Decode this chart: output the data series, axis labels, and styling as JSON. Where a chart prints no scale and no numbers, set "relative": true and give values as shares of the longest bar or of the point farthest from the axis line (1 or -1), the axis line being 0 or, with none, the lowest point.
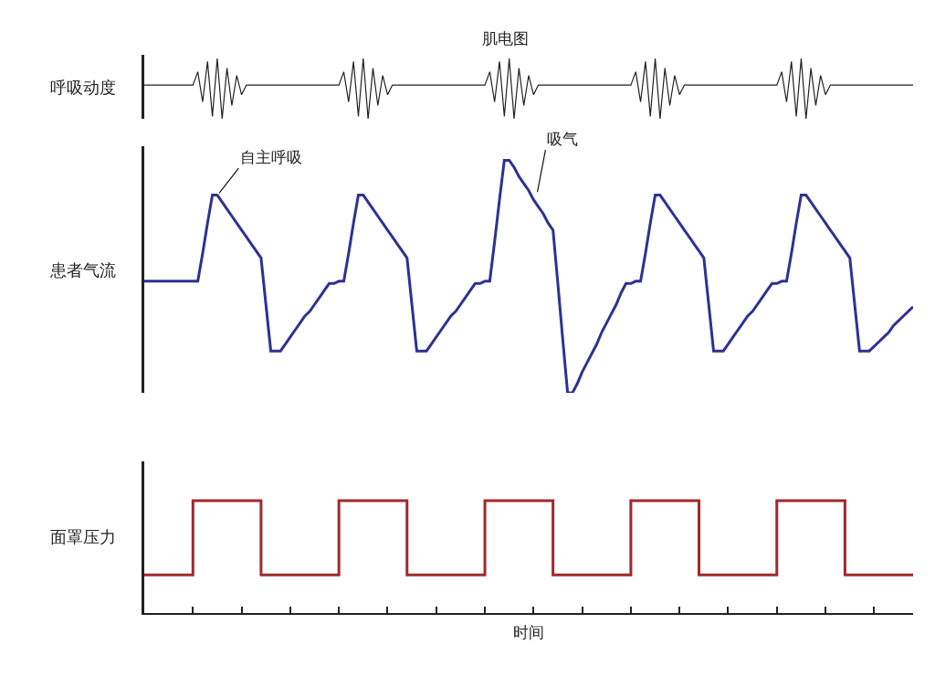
{
  "chart_data": [
    {
      "type": "line",
      "title": "肌电图",
      "ylabel": "呼吸动度",
      "relative": true,
      "tick_labels": false,
      "marker": "none",
      "line_style": "solid",
      "categories": [
        null,
        null,
        null,
        null,
        null,
        null,
        null,
        null,
        null,
        null,
        null,
        null,
        null,
        null,
        null,
        null,
        null,
        null,
        null,
        null,
        null,
        null,
        null,
        null,
        null,
        null,
        null,
        null,
        null,
        null,
        null,
        null,
        null,
        null,
        null,
        null,
        null,
        null,
        null,
        null,
        null,
        null,
        null,
        null,
        null,
        null,
        null,
        null,
        null,
        null,
        null,
        null,
        null,
        null,
        null,
        null,
        null,
        null,
        null,
        null,
        null,
        null,
        null,
        null,
        null,
        null,
        null,
        null,
        null,
        null,
        null,
        null,
        null,
        null,
        null,
        null,
        null,
        null,
        null,
        null,
        null,
        null,
        null,
        null,
        null,
        null,
        null,
        null,
        null,
        null,
        null,
        null,
        null,
        null,
        null,
        null,
        null,
        null,
        null,
        null,
        null,
        null,
        null,
        null,
        null,
        null,
        null,
        null,
        null,
        null,
        null,
        null,
        null,
        null,
        null,
        null,
        null,
        null,
        null,
        null,
        null,
        null,
        null,
        null,
        null,
        null,
        null,
        null,
        null,
        null,
        null,
        null,
        null,
        null,
        null,
        null,
        null,
        null,
        null,
        null,
        null,
        null,
        null,
        null,
        null,
        null,
        null,
        null,
        null,
        null,
        null,
        null,
        null,
        null,
        null,
        null,
        null,
        null,
        null
      ],
      "series": [
        {
          "color": "#222222",
          "values": [
            0.56,
            0.56,
            0.56,
            0.56,
            0.56,
            0.56,
            0.56,
            0.56,
            0.56,
            0.56,
            0.56,
            0.78,
            0.28,
            0.95,
            0.04,
            1.0,
            0,
            0.84,
            0.22,
            0.72,
            0.4,
            0.56,
            0.56,
            0.56,
            0.56,
            0.56,
            0.56,
            0.56,
            0.56,
            0.56,
            0.56,
            0.56,
            0.56,
            0.56,
            0.56,
            0.56,
            0.56,
            0.56,
            0.56,
            0.56,
            0.56,
            0.78,
            0.28,
            0.95,
            0.04,
            1.0,
            0,
            0.84,
            0.22,
            0.72,
            0.4,
            0.56,
            0.56,
            0.56,
            0.56,
            0.56,
            0.56,
            0.56,
            0.56,
            0.56,
            0.56,
            0.56,
            0.56,
            0.56,
            0.56,
            0.56,
            0.56,
            0.56,
            0.56,
            0.56,
            0.56,
            0.78,
            0.28,
            0.95,
            0.04,
            1.0,
            0,
            0.84,
            0.22,
            0.72,
            0.4,
            0.56,
            0.56,
            0.56,
            0.56,
            0.56,
            0.56,
            0.56,
            0.56,
            0.56,
            0.56,
            0.56,
            0.56,
            0.56,
            0.56,
            0.56,
            0.56,
            0.56,
            0.56,
            0.56,
            0.56,
            0.78,
            0.28,
            0.95,
            0.04,
            1.0,
            0,
            0.84,
            0.22,
            0.72,
            0.4,
            0.56,
            0.56,
            0.56,
            0.56,
            0.56,
            0.56,
            0.56,
            0.56,
            0.56,
            0.56,
            0.56,
            0.56,
            0.56,
            0.56,
            0.56,
            0.56,
            0.56,
            0.56,
            0.56,
            0.56,
            0.78,
            0.28,
            0.95,
            0.04,
            1.0,
            0,
            0.84,
            0.22,
            0.72,
            0.4,
            0.56,
            0.56,
            0.56,
            0.56,
            0.56,
            0.56,
            0.56,
            0.56,
            0.56,
            0.56,
            0.56,
            0.56,
            0.56,
            0.56,
            0.56,
            0.56,
            0.56,
            0.56
          ]
        }
      ]
    },
    {
      "type": "line",
      "ylabel": "患者气流",
      "relative": true,
      "tick_labels": false,
      "marker": "none",
      "line_style": "solid",
      "annotations": [
        "自主呼吸",
        "吸气"
      ],
      "categories": [
        null,
        null,
        null,
        null,
        null,
        null,
        null,
        null,
        null,
        null,
        null,
        null,
        null,
        null,
        null,
        null,
        null,
        null,
        null,
        null,
        null,
        null,
        null,
        null,
        null,
        null,
        null,
        null,
        null,
        null,
        null,
        null,
        null,
        null,
        null,
        null,
        null,
        null,
        null,
        null,
        null,
        null,
        null,
        null,
        null,
        null,
        null,
        null,
        null,
        null,
        null,
        null,
        null,
        null,
        null,
        null,
        null,
        null,
        null,
        null,
        null,
        null,
        null,
        null,
        null,
        null,
        null,
        null,
        null,
        null,
        null,
        null,
        null,
        null,
        null,
        null,
        null,
        null,
        null,
        null,
        null,
        null,
        null,
        null,
        null,
        null,
        null,
        null,
        null,
        null,
        null,
        null,
        null,
        null,
        null,
        null,
        null,
        null,
        null,
        null,
        null,
        null,
        null,
        null,
        null,
        null,
        null,
        null,
        null,
        null,
        null,
        null,
        null,
        null,
        null,
        null,
        null,
        null,
        null,
        null,
        null,
        null,
        null,
        null,
        null,
        null,
        null,
        null,
        null,
        null,
        null,
        null,
        null,
        null,
        null,
        null,
        null,
        null,
        null,
        null,
        null,
        null,
        null,
        null,
        null,
        null,
        null,
        null,
        null,
        null,
        null,
        null,
        null,
        null,
        null,
        null,
        null,
        null,
        null
      ],
      "series": [
        {
          "color": "#2e3192",
          "values": [
            0.48,
            0.48,
            0.48,
            0.48,
            0.48,
            0.48,
            0.48,
            0.48,
            0.48,
            0.48,
            0.48,
            0.48,
            0.6,
            0.73,
            0.85,
            0.85,
            0.82,
            0.79,
            0.76,
            0.73,
            0.7,
            0.67,
            0.64,
            0.61,
            0.58,
            0.38,
            0.18,
            0.18,
            0.18,
            0.21,
            0.24,
            0.27,
            0.3,
            0.33,
            0.35,
            0.38,
            0.41,
            0.44,
            0.47,
            0.47,
            0.48,
            0.48,
            0.6,
            0.73,
            0.85,
            0.85,
            0.82,
            0.79,
            0.76,
            0.73,
            0.7,
            0.67,
            0.64,
            0.61,
            0.58,
            0.38,
            0.18,
            0.18,
            0.18,
            0.21,
            0.24,
            0.27,
            0.3,
            0.33,
            0.35,
            0.38,
            0.41,
            0.44,
            0.47,
            0.47,
            0.48,
            0.48,
            0.65,
            0.83,
            1.0,
            1.0,
            0.97,
            0.93,
            0.9,
            0.87,
            0.83,
            0.8,
            0.77,
            0.73,
            0.7,
            0.47,
            0.23,
            0,
            0,
            0.04,
            0.09,
            0.13,
            0.17,
            0.21,
            0.26,
            0.3,
            0.34,
            0.38,
            0.43,
            0.47,
            0.47,
            0.48,
            0.48,
            0.6,
            0.73,
            0.85,
            0.85,
            0.82,
            0.79,
            0.76,
            0.73,
            0.7,
            0.67,
            0.64,
            0.61,
            0.58,
            0.38,
            0.18,
            0.18,
            0.18,
            0.21,
            0.24,
            0.27,
            0.3,
            0.33,
            0.35,
            0.38,
            0.41,
            0.44,
            0.47,
            0.47,
            0.48,
            0.48,
            0.6,
            0.73,
            0.85,
            0.85,
            0.82,
            0.79,
            0.76,
            0.73,
            0.7,
            0.67,
            0.64,
            0.61,
            0.58,
            0.38,
            0.18,
            0.18,
            0.18,
            0.2,
            0.22,
            0.24,
            0.26,
            0.29,
            0.31,
            0.33,
            0.35,
            0.37
          ]
        }
      ]
    },
    {
      "type": "step",
      "ylabel": "面罩压力",
      "xlabel": "时间",
      "relative": true,
      "tick_labels": false,
      "marker": "none",
      "line_style": "solid",
      "categories": [
        null,
        null,
        null,
        null,
        null,
        null,
        null,
        null,
        null,
        null,
        null,
        null,
        null,
        null,
        null,
        null,
        null,
        null,
        null,
        null,
        null,
        null,
        null,
        null,
        null,
        null,
        null,
        null,
        null,
        null,
        null,
        null,
        null,
        null,
        null,
        null,
        null,
        null,
        null,
        null,
        null,
        null,
        null,
        null,
        null,
        null,
        null,
        null,
        null,
        null,
        null,
        null,
        null,
        null,
        null,
        null,
        null,
        null,
        null,
        null,
        null,
        null,
        null,
        null,
        null,
        null,
        null,
        null,
        null,
        null,
        null,
        null,
        null,
        null,
        null,
        null,
        null,
        null,
        null,
        null,
        null,
        null,
        null,
        null,
        null,
        null,
        null,
        null,
        null,
        null,
        null,
        null,
        null,
        null,
        null,
        null,
        null,
        null,
        null,
        null,
        null,
        null,
        null,
        null,
        null,
        null,
        null,
        null,
        null,
        null,
        null,
        null,
        null,
        null,
        null,
        null,
        null,
        null,
        null,
        null,
        null,
        null,
        null,
        null,
        null,
        null,
        null,
        null,
        null,
        null,
        null,
        null,
        null,
        null,
        null,
        null,
        null,
        null,
        null,
        null,
        null,
        null,
        null,
        null,
        null,
        null,
        null,
        null,
        null,
        null,
        null,
        null,
        null,
        null,
        null,
        null,
        null,
        null,
        null
      ],
      "series": [
        {
          "color": "#a0282d",
          "values": [
            0.34,
            0.34,
            0.34,
            0.34,
            0.34,
            0.34,
            0.34,
            0.34,
            0.34,
            0.34,
            1,
            1,
            1,
            1,
            1,
            1,
            1,
            1,
            1,
            1,
            1,
            1,
            1,
            1,
            0.34,
            0.34,
            0.34,
            0.34,
            0.34,
            0.34,
            0.34,
            0.34,
            0.34,
            0.34,
            0.34,
            0.34,
            0.34,
            0.34,
            0.34,
            0.34,
            1,
            1,
            1,
            1,
            1,
            1,
            1,
            1,
            1,
            1,
            1,
            1,
            1,
            1,
            0.34,
            0.34,
            0.34,
            0.34,
            0.34,
            0.34,
            0.34,
            0.34,
            0.34,
            0.34,
            0.34,
            0.34,
            0.34,
            0.34,
            0.34,
            0.34,
            1,
            1,
            1,
            1,
            1,
            1,
            1,
            1,
            1,
            1,
            1,
            1,
            1,
            1,
            0.34,
            0.34,
            0.34,
            0.34,
            0.34,
            0.34,
            0.34,
            0.34,
            0.34,
            0.34,
            0.34,
            0.34,
            0.34,
            0.34,
            0.34,
            0.34,
            1,
            1,
            1,
            1,
            1,
            1,
            1,
            1,
            1,
            1,
            1,
            1,
            1,
            1,
            0.34,
            0.34,
            0.34,
            0.34,
            0.34,
            0.34,
            0.34,
            0.34,
            0.34,
            0.34,
            0.34,
            0.34,
            0.34,
            0.34,
            0.34,
            0.34,
            1,
            1,
            1,
            1,
            1,
            1,
            1,
            1,
            1,
            1,
            1,
            1,
            1,
            1,
            0.34,
            0.34,
            0.34,
            0.34,
            0.34,
            0.34,
            0.34,
            0.34,
            0.34,
            0.34,
            0.34,
            0.34,
            0.34,
            0.34,
            0.34
          ]
        }
      ]
    }
  ]
}
